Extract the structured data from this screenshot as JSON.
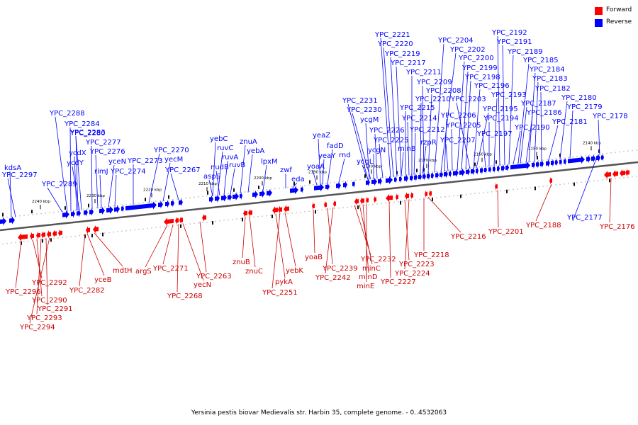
{
  "colors": {
    "forward": "#ff0000",
    "reverse": "#0000ff",
    "forward_text": "#cc0000",
    "reverse_text": "#0000ff",
    "axis": "#555555"
  },
  "legend": {
    "forward": "Forward",
    "reverse": "Reverse"
  },
  "caption": "Yersinia pestis biovar Medievalis str. Harbin 35, complete genome. - 0..4532063",
  "scale_labels": [
    "2240 kbp",
    "2230 kbp",
    "2220 kbp",
    "2210 kbp",
    "2200 kbp",
    "2190 kbp",
    "2180 kbp",
    "2170 kbp",
    "2160 kbp",
    "2150 kbp",
    "2140 kbp"
  ],
  "reverse_genes": [
    "kdsA",
    "YPC_2297",
    "YPC_2289",
    "YPC_2288",
    "YPC_2284",
    "ycdX",
    "YPC_2283",
    "ycdY",
    "YPC_2280",
    "YPC_2277",
    "YPC_2276",
    "rimJ",
    "yceN",
    "YPC_2274",
    "YPC_2273",
    "YPC_2270",
    "yecM",
    "YPC_2267",
    "yebC",
    "ruvC",
    "nudB",
    "aspS",
    "ruvA",
    "ruvB",
    "znuA",
    "yebA",
    "lpxM",
    "zwf",
    "eda",
    "yeaZ",
    "yoaA",
    "yeaY",
    "fadD",
    "rnd",
    "ycgM",
    "YPC_2231",
    "YPC_2230",
    "ycgL",
    "ycgN",
    "YPC_2226",
    "YPC_2225",
    "minB",
    "YPC_2221",
    "YPC_2220",
    "YPC_2219",
    "YPC_2217",
    "YPC_2215",
    "YPC_2214",
    "YPC_2211",
    "YPC_2212",
    "rzpR",
    "YPC_2210",
    "YPC_2209",
    "YPC_2208",
    "YPC_2204",
    "YPC_2202",
    "YPC_2206",
    "YPC_2207",
    "YPC_2205",
    "YPC_2200",
    "YPC_2199",
    "YPC_2198",
    "YPC_2203",
    "YPC_2196",
    "YPC_2195",
    "YPC_2197",
    "YPC_2194",
    "YPC_2193",
    "YPC_2192",
    "YPC_2191",
    "YPC_2189",
    "YPC_2190",
    "YPC_2185",
    "YPC_2187",
    "YPC_2184",
    "YPC_2186",
    "YPC_2183",
    "YPC_2182",
    "YPC_2181",
    "YPC_2180",
    "YPC_2179",
    "YPC_2178",
    "YPC_2177"
  ],
  "forward_genes": [
    "YPC_2296",
    "YPC_2292",
    "YPC_2290",
    "YPC_2293",
    "YPC_2291",
    "YPC_2294",
    "yceB",
    "YPC_2282",
    "mdtH",
    "argS",
    "YPC_2271",
    "YPC_2268",
    "yecN",
    "YPC_2263",
    "znuB",
    "znuC",
    "pykA",
    "YPC_2251",
    "yebK",
    "yoaB",
    "YPC_2239",
    "YPC_2242",
    "YPC_2232",
    "minC",
    "minD",
    "minE",
    "YPC_2227",
    "YPC_2223",
    "YPC_2224",
    "YPC_2218",
    "YPC_2216",
    "YPC_2201",
    "YPC_2188",
    "YPC_2176"
  ]
}
